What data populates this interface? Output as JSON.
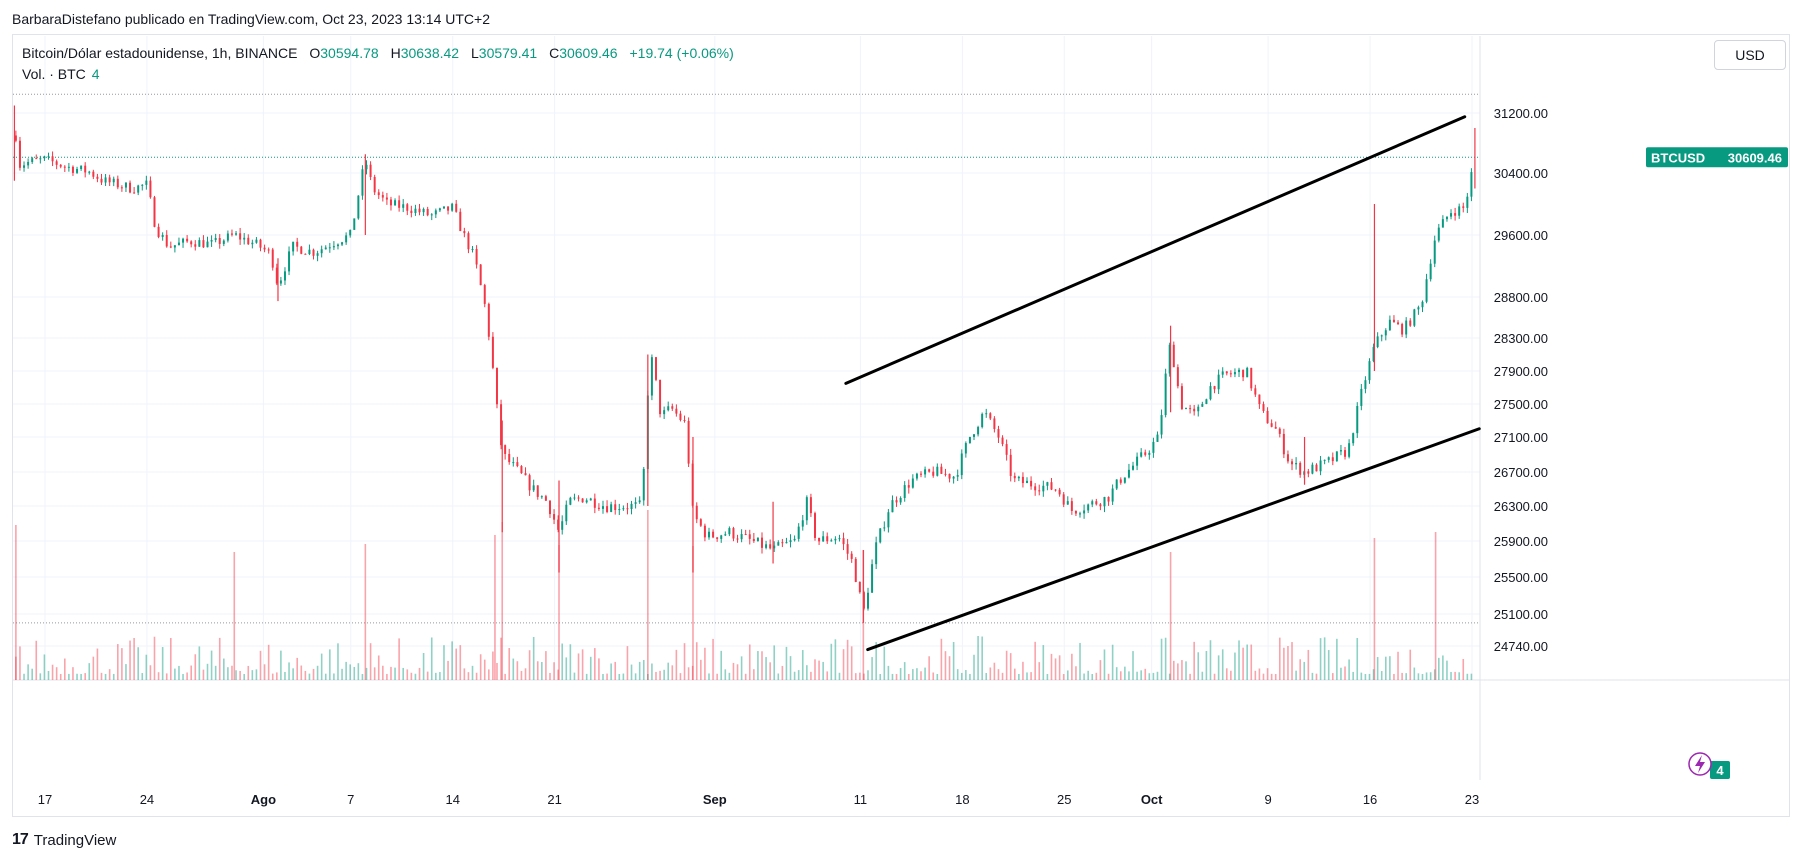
{
  "byline": "BarbaraDistefano publicado en TradingView.com, Oct 23, 2023 13:14 UTC+2",
  "legend": {
    "symbol": "Bitcoin/Dólar estadounidense, 1h, BINANCE",
    "open_label": "O",
    "open": "30594.78",
    "high_label": "H",
    "high": "30638.42",
    "low_label": "L",
    "low": "30579.41",
    "close_label": "C",
    "close": "30609.46",
    "change": "+19.74 (+0.06%)"
  },
  "volume_legend": {
    "label": "Vol. · BTC",
    "value": "4"
  },
  "currency_button": "USD",
  "price_tag": {
    "symbol": "BTCUSD",
    "price": "30609.46"
  },
  "volume_tag": "4",
  "footer": {
    "brand": "TradingView"
  },
  "colors": {
    "up": "#089981",
    "down": "#f23645",
    "trendline": "#000000",
    "tag_bg": "#089981"
  },
  "chart_data": {
    "type": "candlestick",
    "symbol": "BTCUSD",
    "interval": "1h",
    "y_ticks": [
      31200,
      30400,
      29600,
      28800,
      28300,
      27900,
      27500,
      27100,
      26700,
      26300,
      25900,
      25500,
      25100,
      24740
    ],
    "x_ticks": [
      {
        "label": "17",
        "day": 17
      },
      {
        "label": "24",
        "day": 24
      },
      {
        "label": "Ago",
        "day": 32,
        "bold": true
      },
      {
        "label": "7",
        "day": 38
      },
      {
        "label": "14",
        "day": 45
      },
      {
        "label": "21",
        "day": 52
      },
      {
        "label": "Sep",
        "day": 63,
        "bold": true
      },
      {
        "label": "11",
        "day": 73
      },
      {
        "label": "18",
        "day": 80
      },
      {
        "label": "25",
        "day": 87
      },
      {
        "label": "Oct",
        "day": 93,
        "bold": true
      },
      {
        "label": "9",
        "day": 101
      },
      {
        "label": "16",
        "day": 108
      },
      {
        "label": "23",
        "day": 115
      }
    ],
    "path_points": [
      [
        14.9,
        31300
      ],
      [
        15.1,
        30500
      ],
      [
        16,
        30550
      ],
      [
        17,
        30580
      ],
      [
        18.5,
        30480
      ],
      [
        20,
        30420
      ],
      [
        21,
        30300
      ],
      [
        23,
        30200
      ],
      [
        24,
        30250
      ],
      [
        24.6,
        29700
      ],
      [
        25.5,
        29450
      ],
      [
        27,
        29520
      ],
      [
        28.5,
        29480
      ],
      [
        30,
        29600
      ],
      [
        31.5,
        29480
      ],
      [
        32.5,
        29360
      ],
      [
        33,
        28950
      ],
      [
        34,
        29450
      ],
      [
        35.5,
        29380
      ],
      [
        37,
        29520
      ],
      [
        38,
        29600
      ],
      [
        38.6,
        30200
      ],
      [
        39,
        30580
      ],
      [
        39.5,
        30200
      ],
      [
        40.5,
        30000
      ],
      [
        42,
        29950
      ],
      [
        43.5,
        29850
      ],
      [
        45,
        29950
      ],
      [
        45.7,
        29620
      ],
      [
        46.5,
        29300
      ],
      [
        47.2,
        28700
      ],
      [
        47.6,
        28200
      ],
      [
        48,
        27500
      ],
      [
        48.4,
        26900
      ],
      [
        49.5,
        26700
      ],
      [
        50.5,
        26500
      ],
      [
        51.5,
        26350
      ],
      [
        52.3,
        26000
      ],
      [
        53,
        26350
      ],
      [
        54,
        26400
      ],
      [
        55.5,
        26300
      ],
      [
        57,
        26300
      ],
      [
        58,
        26300
      ],
      [
        58.4,
        27650
      ],
      [
        58.7,
        28050
      ],
      [
        59.3,
        27350
      ],
      [
        60,
        27450
      ],
      [
        61,
        27250
      ],
      [
        61.5,
        26200
      ],
      [
        62.5,
        25950
      ],
      [
        64,
        26000
      ],
      [
        65.5,
        25900
      ],
      [
        67,
        25800
      ],
      [
        68.5,
        25900
      ],
      [
        69.3,
        26350
      ],
      [
        70,
        25900
      ],
      [
        71.5,
        25950
      ],
      [
        72.5,
        25650
      ],
      [
        73.2,
        25100
      ],
      [
        74,
        25800
      ],
      [
        75,
        26300
      ],
      [
        76.5,
        26600
      ],
      [
        78,
        26700
      ],
      [
        79.5,
        26650
      ],
      [
        80.5,
        27100
      ],
      [
        81.5,
        27400
      ],
      [
        82.5,
        27100
      ],
      [
        83.5,
        26600
      ],
      [
        85,
        26550
      ],
      [
        86.5,
        26500
      ],
      [
        87.5,
        26250
      ],
      [
        88.5,
        26300
      ],
      [
        90,
        26400
      ],
      [
        91,
        26650
      ],
      [
        92.5,
        26900
      ],
      [
        93.5,
        27100
      ],
      [
        94,
        27900
      ],
      [
        94.3,
        28250
      ],
      [
        95,
        27500
      ],
      [
        96,
        27350
      ],
      [
        97,
        27700
      ],
      [
        98,
        27850
      ],
      [
        99.5,
        27900
      ],
      [
        100.5,
        27400
      ],
      [
        101.5,
        27200
      ],
      [
        102.5,
        26800
      ],
      [
        103.5,
        26700
      ],
      [
        105,
        26800
      ],
      [
        106.5,
        26950
      ],
      [
        107.5,
        27700
      ],
      [
        108.3,
        28200
      ],
      [
        109.3,
        28500
      ],
      [
        110.3,
        28400
      ],
      [
        111.5,
        28700
      ],
      [
        112.5,
        29600
      ],
      [
        113.5,
        29900
      ],
      [
        114.5,
        29950
      ],
      [
        115.2,
        30609.46
      ]
    ],
    "spikes": [
      {
        "day": 14.9,
        "high": 31300,
        "low": 30300
      },
      {
        "day": 33,
        "high": 29300,
        "low": 28750
      },
      {
        "day": 39,
        "high": 30650,
        "low": 29600
      },
      {
        "day": 48.4,
        "high": 27300,
        "low": 26000
      },
      {
        "day": 52.3,
        "high": 26600,
        "low": 25550
      },
      {
        "day": 58.4,
        "high": 28100,
        "low": 26300
      },
      {
        "day": 61.5,
        "high": 27100,
        "low": 25550
      },
      {
        "day": 67,
        "high": 26350,
        "low": 25650
      },
      {
        "day": 73.2,
        "high": 25800,
        "low": 25000
      },
      {
        "day": 94.3,
        "high": 28450,
        "low": 27400
      },
      {
        "day": 103.5,
        "high": 27100,
        "low": 26550
      },
      {
        "day": 108.3,
        "high": 30000,
        "low": 27900
      },
      {
        "day": 115.2,
        "high": 31000,
        "low": 30200
      }
    ],
    "volume_spikes": [
      {
        "day": 15,
        "v": 55
      },
      {
        "day": 30,
        "v": 28
      },
      {
        "day": 39,
        "v": 36
      },
      {
        "day": 47.9,
        "v": 45
      },
      {
        "day": 48.4,
        "v": 58
      },
      {
        "day": 52.3,
        "v": 35
      },
      {
        "day": 58.4,
        "v": 70
      },
      {
        "day": 61.5,
        "v": 34
      },
      {
        "day": 73.2,
        "v": 30
      },
      {
        "day": 94.3,
        "v": 28
      },
      {
        "day": 108.3,
        "v": 42
      },
      {
        "day": 112.5,
        "v": 48
      }
    ],
    "trendlines": [
      {
        "from": [
          72,
          27750
        ],
        "to": [
          114.5,
          31150
        ]
      },
      {
        "from": [
          73.5,
          24700
        ],
        "to": [
          115.5,
          27200
        ]
      }
    ],
    "horizontal_lines": [
      31450,
      30609.46,
      25000
    ],
    "last_price": 30609.46
  }
}
